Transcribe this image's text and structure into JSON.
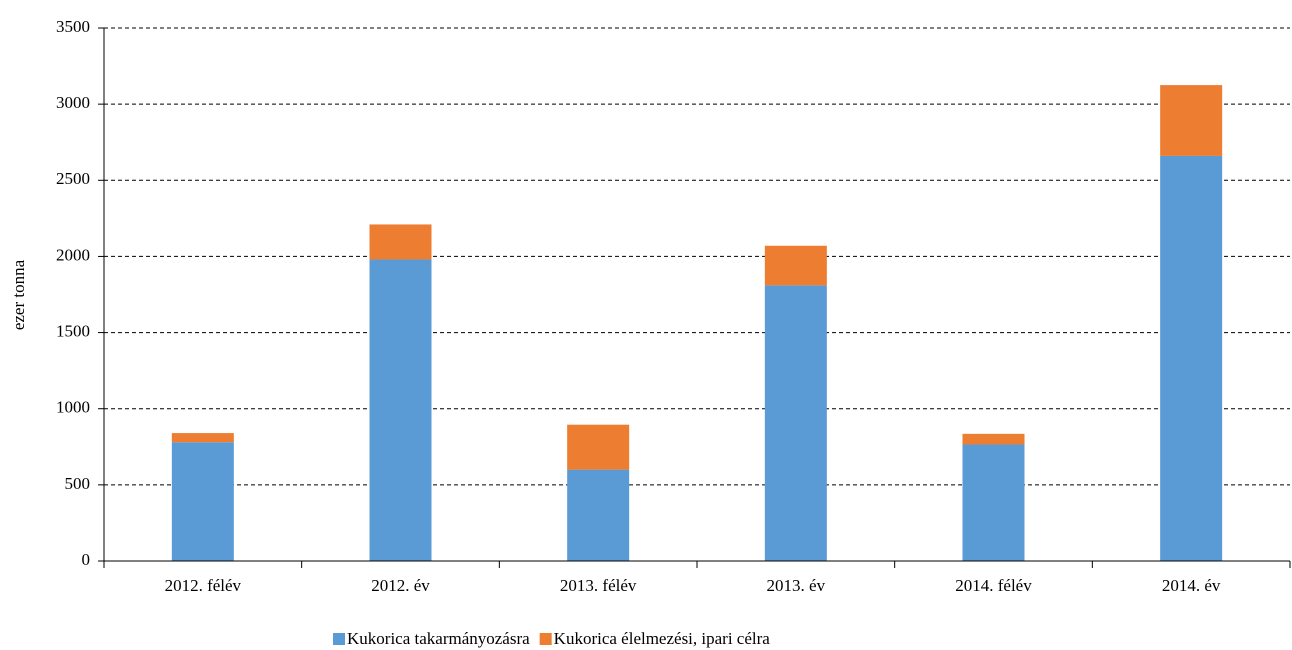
{
  "chart_data": {
    "type": "stacked_bar",
    "y_label": "ezer tonna",
    "categories": [
      "2012. félév",
      "2012. év",
      "2013. félév",
      "2013. év",
      "2014. félév",
      "2014. év"
    ],
    "series": [
      {
        "name": "Kukorica takarmányozásra",
        "color": "#5b9bd5",
        "values": [
          780,
          1980,
          600,
          1810,
          765,
          2660
        ]
      },
      {
        "name": "Kukorica élelmezési, ipari célra",
        "color": "#ed7d31",
        "values": [
          60,
          230,
          295,
          260,
          70,
          465
        ]
      }
    ],
    "ylim": [
      0,
      3500
    ],
    "yticks": [
      0,
      500,
      1000,
      1500,
      2000,
      2500,
      3000,
      3500
    ],
    "grid": true,
    "legend": "bottom"
  }
}
